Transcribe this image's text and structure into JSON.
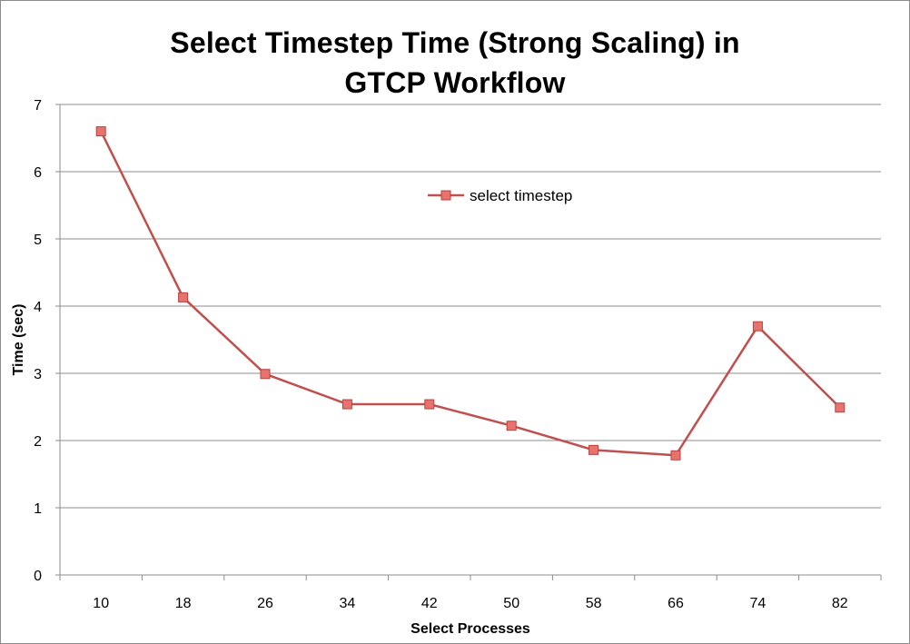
{
  "chart_data": {
    "type": "line",
    "title": "Select Timestep Time (Strong Scaling) in GTCP Workflow",
    "xlabel": "Select Processes",
    "ylabel": "Time (sec)",
    "categories": [
      "10",
      "18",
      "26",
      "34",
      "42",
      "50",
      "58",
      "66",
      "74",
      "82"
    ],
    "series": [
      {
        "name": "select timestep",
        "values": [
          6.6,
          4.13,
          2.99,
          2.54,
          2.54,
          2.22,
          1.86,
          1.78,
          3.7,
          2.49
        ]
      }
    ],
    "ylim": [
      0,
      7
    ],
    "yticks": [
      0,
      1,
      2,
      3,
      4,
      5,
      6,
      7
    ],
    "grid": true,
    "legend_position": "top-center",
    "colors": {
      "line": "#c0504d",
      "marker_fill": "#e8736e",
      "marker_stroke": "#b8423f",
      "grid": "#8c8c8c"
    }
  }
}
